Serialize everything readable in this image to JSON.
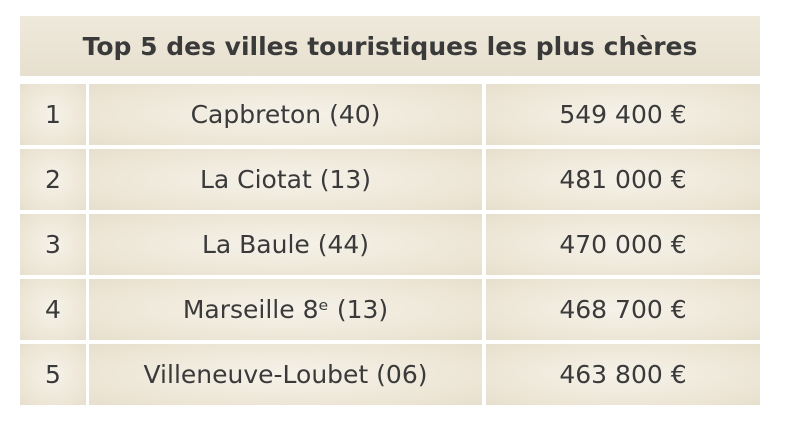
{
  "table": {
    "title": "Top 5 des villes touristiques les plus chères",
    "rows": [
      [
        "1",
        "Capbreton (40)",
        "549 400 €"
      ],
      [
        "2",
        "La Ciotat (13)",
        "481 000 €"
      ],
      [
        "3",
        "La Baule (44)",
        "470 000 €"
      ],
      [
        "4",
        "Marseille 8ᵉ (13)",
        "468 700 €"
      ],
      [
        "5",
        "Villeneuve-Loubet (06)",
        "463 800 €"
      ]
    ]
  }
}
